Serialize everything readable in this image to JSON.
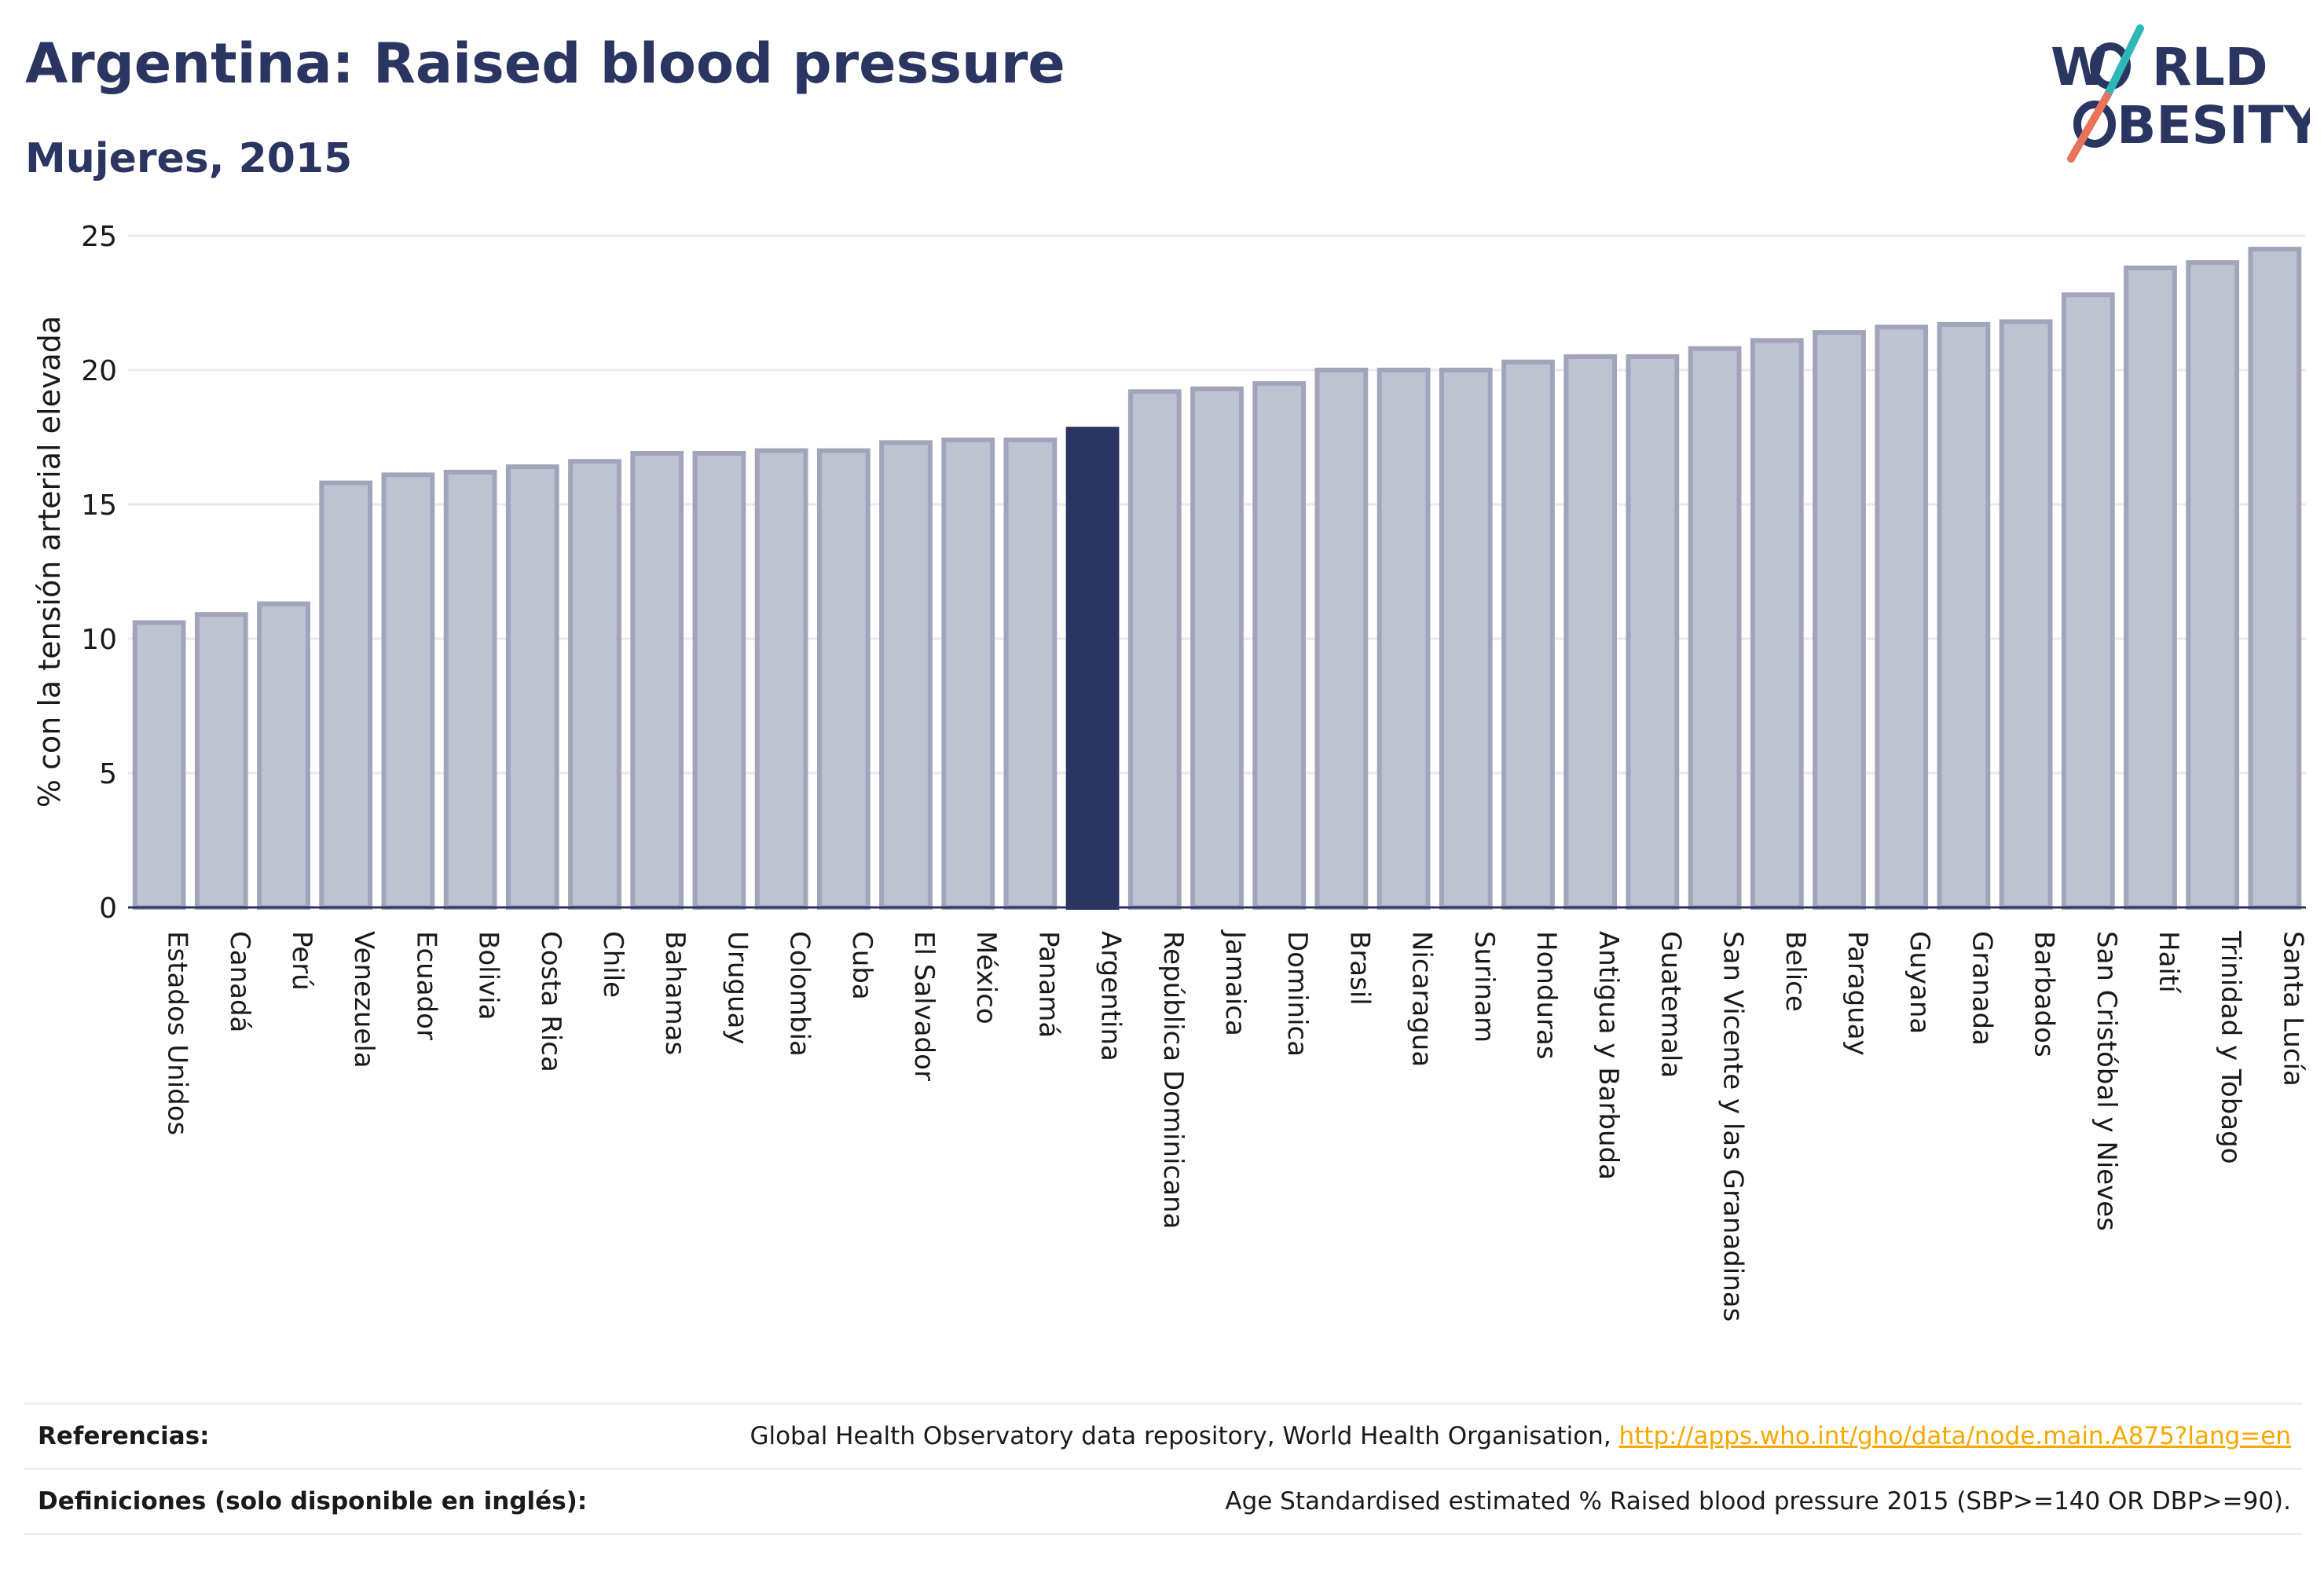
{
  "header": {
    "title": "Argentina: Raised blood pressure",
    "subtitle": "Mujeres, 2015"
  },
  "logo": {
    "line1": "W",
    "line1b": "RLD",
    "line2": "BESITY",
    "slash_color_top": "#2fb7b8",
    "slash_color_bottom": "#e8735a",
    "text_color": "#2a3561"
  },
  "colors": {
    "bar_fill": "#bfc2d0",
    "bar_stroke": "#a0a5bb",
    "highlight": "#2a3561",
    "grid": "#e9eaee",
    "axis": "#2a3561"
  },
  "chart_data": {
    "type": "bar",
    "ylabel": "% con la tensión arterial elevada",
    "ylim": [
      0,
      25
    ],
    "yticks": [
      0,
      5,
      10,
      15,
      20,
      25
    ],
    "grid": true,
    "highlight_category": "Argentina",
    "categories": [
      "Estados Unidos",
      "Canadá",
      "Perú",
      "Venezuela",
      "Ecuador",
      "Bolivia",
      "Costa Rica",
      "Chile",
      "Bahamas",
      "Uruguay",
      "Colombia",
      "Cuba",
      "El Salvador",
      "México",
      "Panamá",
      "Argentina",
      "República Dominicana",
      "Jamaica",
      "Dominica",
      "Brasil",
      "Nicaragua",
      "Surinam",
      "Honduras",
      "Antigua y Barbuda",
      "Guatemala",
      "San Vicente y las Granadinas",
      "Belice",
      "Paraguay",
      "Guyana",
      "Granada",
      "Barbados",
      "San Cristóbal y Nieves",
      "Haití",
      "Trinidad y Tobago",
      "Santa Lucía"
    ],
    "values": [
      10.6,
      10.9,
      11.3,
      15.8,
      16.1,
      16.2,
      16.4,
      16.6,
      16.9,
      16.9,
      17.0,
      17.0,
      17.3,
      17.4,
      17.4,
      17.8,
      19.2,
      19.3,
      19.5,
      20.0,
      20.0,
      20.0,
      20.3,
      20.5,
      20.5,
      20.8,
      21.1,
      21.4,
      21.6,
      21.7,
      21.8,
      22.8,
      23.8,
      24.0,
      24.5
    ]
  },
  "footer": {
    "references_label": "Referencias:",
    "references_text": "Global Health Observatory data repository, World Health Organisation, ",
    "references_link": "http://apps.who.int/gho/data/node.main.A875?lang=en",
    "definitions_label": "Definiciones (solo disponible en inglés):",
    "definitions_text": "Age Standardised estimated % Raised blood pressure 2015 (SBP>=140 OR DBP>=90)."
  }
}
